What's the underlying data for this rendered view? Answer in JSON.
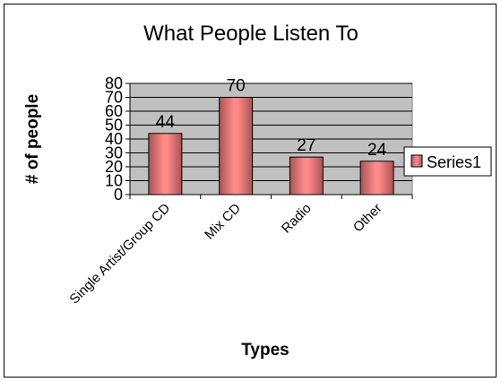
{
  "chart_data": {
    "type": "bar",
    "title": "What People Listen To",
    "xlabel": "Types",
    "ylabel": "# of people",
    "categories": [
      "Single Artist/Group CD",
      "Mix CD",
      "Radio",
      "Other"
    ],
    "series": [
      {
        "name": "Series1",
        "values": [
          44,
          70,
          27,
          24
        ]
      }
    ],
    "ylim": [
      0,
      80
    ],
    "yticks": [
      0,
      10,
      20,
      30,
      40,
      50,
      60,
      70,
      80
    ],
    "grid": true,
    "data_labels": true,
    "legend": "right",
    "colors": {
      "plot_background": "#c0c0c0",
      "bar_fill": "#ff8080",
      "bar_edge": "#a04848",
      "gridline": "#000000"
    }
  }
}
